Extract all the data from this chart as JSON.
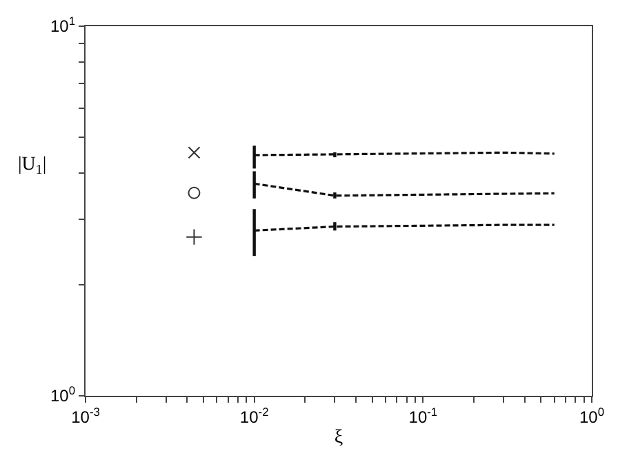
{
  "chart_data": {
    "type": "line",
    "xlabel": "ξ",
    "ylabel": "|U$_{1}$|",
    "log": "xy",
    "xlim": [
      0.001,
      1
    ],
    "ylim": [
      1,
      10
    ],
    "xticks": [
      {
        "value": 0.001,
        "label": "10$^{-3}$"
      },
      {
        "value": 0.002,
        "label": null
      },
      {
        "value": 0.003,
        "label": null
      },
      {
        "value": 0.004,
        "label": null
      },
      {
        "value": 0.005,
        "label": null
      },
      {
        "value": 0.006,
        "label": null
      },
      {
        "value": 0.007,
        "label": null
      },
      {
        "value": 0.008,
        "label": null
      },
      {
        "value": 0.009,
        "label": null
      },
      {
        "value": 0.01,
        "label": "10$^{-2}$"
      },
      {
        "value": 0.02,
        "label": null
      },
      {
        "value": 0.03,
        "label": null
      },
      {
        "value": 0.04,
        "label": null
      },
      {
        "value": 0.05,
        "label": null
      },
      {
        "value": 0.06,
        "label": null
      },
      {
        "value": 0.07,
        "label": null
      },
      {
        "value": 0.08,
        "label": null
      },
      {
        "value": 0.09,
        "label": null
      },
      {
        "value": 0.1,
        "label": "10$^{-1}$"
      },
      {
        "value": 0.2,
        "label": null
      },
      {
        "value": 0.3,
        "label": null
      },
      {
        "value": 0.4,
        "label": null
      },
      {
        "value": 0.5,
        "label": null
      },
      {
        "value": 0.6,
        "label": null
      },
      {
        "value": 0.7,
        "label": null
      },
      {
        "value": 0.8,
        "label": null
      },
      {
        "value": 0.9,
        "label": null
      },
      {
        "value": 1,
        "label": "10$^{0}$"
      }
    ],
    "yticks": [
      {
        "value": 1,
        "label": "10$^{0}$"
      },
      {
        "value": 2,
        "label": null
      },
      {
        "value": 3,
        "label": null
      },
      {
        "value": 4,
        "label": null
      },
      {
        "value": 5,
        "label": null
      },
      {
        "value": 6,
        "label": null
      },
      {
        "value": 7,
        "label": null
      },
      {
        "value": 8,
        "label": null
      },
      {
        "value": 9,
        "label": null
      },
      {
        "value": 10,
        "label": "10$^{1}$"
      }
    ],
    "series": [
      {
        "type": "scatter",
        "marker": "x",
        "color": "#333333",
        "x": [
          0.0044
        ],
        "values": [
          4.55
        ]
      },
      {
        "type": "scatter",
        "marker": "circle",
        "color": "#333333",
        "x": [
          0.0044
        ],
        "values": [
          3.54
        ]
      },
      {
        "type": "scatter",
        "marker": "cross",
        "color": "#333333",
        "x": [
          0.0044
        ],
        "values": [
          2.69
        ]
      },
      {
        "line_style": "dashed",
        "color": "#111111",
        "x": [
          0.01,
          0.03,
          0.3,
          0.6
        ],
        "values": [
          4.48,
          4.5,
          4.55,
          4.52
        ],
        "errors": [
          [
            4.12,
            4.75
          ],
          [
            4.42,
            4.56
          ],
          null,
          null
        ]
      },
      {
        "line_style": "dashed",
        "color": "#111111",
        "x": [
          0.01,
          0.03,
          0.3,
          0.6
        ],
        "values": [
          3.75,
          3.48,
          3.52,
          3.53
        ],
        "errors": [
          [
            3.42,
            4.05
          ],
          [
            3.42,
            3.55
          ],
          null,
          null
        ]
      },
      {
        "line_style": "dashed",
        "color": "#111111",
        "x": [
          0.01,
          0.03,
          0.3,
          0.6
        ],
        "values": [
          2.8,
          2.87,
          2.9,
          2.9
        ],
        "errors": [
          [
            2.39,
            3.2
          ],
          [
            2.8,
            2.95
          ],
          null,
          null
        ]
      }
    ]
  }
}
